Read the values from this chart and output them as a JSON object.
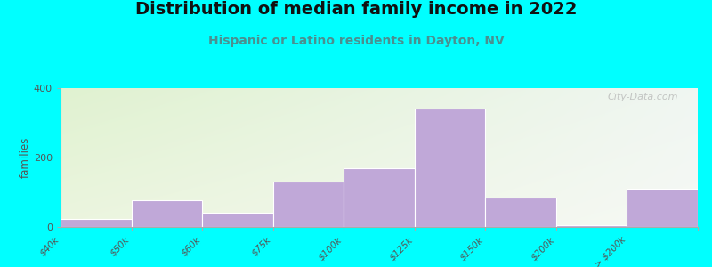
{
  "title": "Distribution of median family income in 2022",
  "subtitle": "Hispanic or Latino residents in Dayton, NV",
  "ylabel": "families",
  "categories": [
    "$40k",
    "$50k",
    "$60k",
    "$75k",
    "$100k",
    "$125k",
    "$150k",
    "$200k",
    "> $200k"
  ],
  "bar_labels": [
    "$40k",
    "$50k",
    "$60k",
    "$75k",
    "$100k",
    "$125k",
    "$150k",
    "$200k",
    "> $200k"
  ],
  "values": [
    22,
    78,
    40,
    130,
    168,
    340,
    85,
    5,
    110
  ],
  "bar_color": "#c0a8d8",
  "figure_bg": "#00ffff",
  "plot_bg_topleft": [
    0.878,
    0.949,
    0.816
  ],
  "plot_bg_topright": [
    0.941,
    0.965,
    0.949
  ],
  "plot_bg_bottomleft": [
    0.925,
    0.961,
    0.875
  ],
  "plot_bg_bottomright": [
    0.965,
    0.976,
    0.961
  ],
  "ylim": [
    0,
    400
  ],
  "yticks": [
    0,
    200,
    400
  ],
  "title_fontsize": 14,
  "subtitle_fontsize": 10,
  "watermark": "City-Data.com",
  "subtitle_color": "#4a9090",
  "title_color": "#111111",
  "tick_label_color": "#555555",
  "axis_color": "#aaaaaa"
}
